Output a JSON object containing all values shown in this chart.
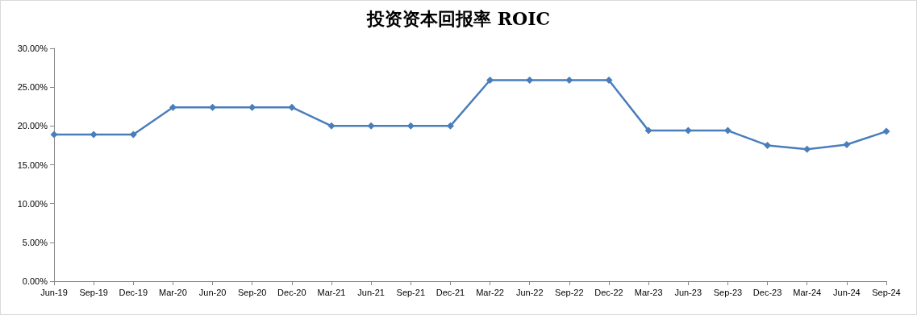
{
  "chart_data": {
    "type": "line",
    "title": "投资资本回报率 ROIC",
    "categories": [
      "Jun-19",
      "Sep-19",
      "Dec-19",
      "Mar-20",
      "Jun-20",
      "Sep-20",
      "Dec-20",
      "Mar-21",
      "Jun-21",
      "Sep-21",
      "Dec-21",
      "Mar-22",
      "Jun-22",
      "Sep-22",
      "Dec-22",
      "Mar-23",
      "Jun-23",
      "Sep-23",
      "Dec-23",
      "Mar-24",
      "Jun-24",
      "Sep-24"
    ],
    "series": [
      {
        "color": "#4a7ebb",
        "values": [
          18.9,
          18.9,
          18.9,
          22.4,
          22.4,
          22.4,
          22.4,
          20.0,
          20.0,
          20.0,
          20.0,
          25.9,
          25.9,
          25.9,
          25.9,
          19.4,
          19.4,
          19.4,
          17.5,
          17.0,
          17.6,
          19.3
        ]
      }
    ],
    "ylim": [
      0,
      30
    ],
    "yticks": [
      {
        "value": 0,
        "label": "0.00%"
      },
      {
        "value": 5,
        "label": "5.00%"
      },
      {
        "value": 10,
        "label": "10.00%"
      },
      {
        "value": 15,
        "label": "15.00%"
      },
      {
        "value": 20,
        "label": "20.00%"
      },
      {
        "value": 25,
        "label": "25.00%"
      },
      {
        "value": 30,
        "label": "30.00%"
      }
    ],
    "grid": false,
    "marker": "diamond",
    "line_style": "solid"
  }
}
